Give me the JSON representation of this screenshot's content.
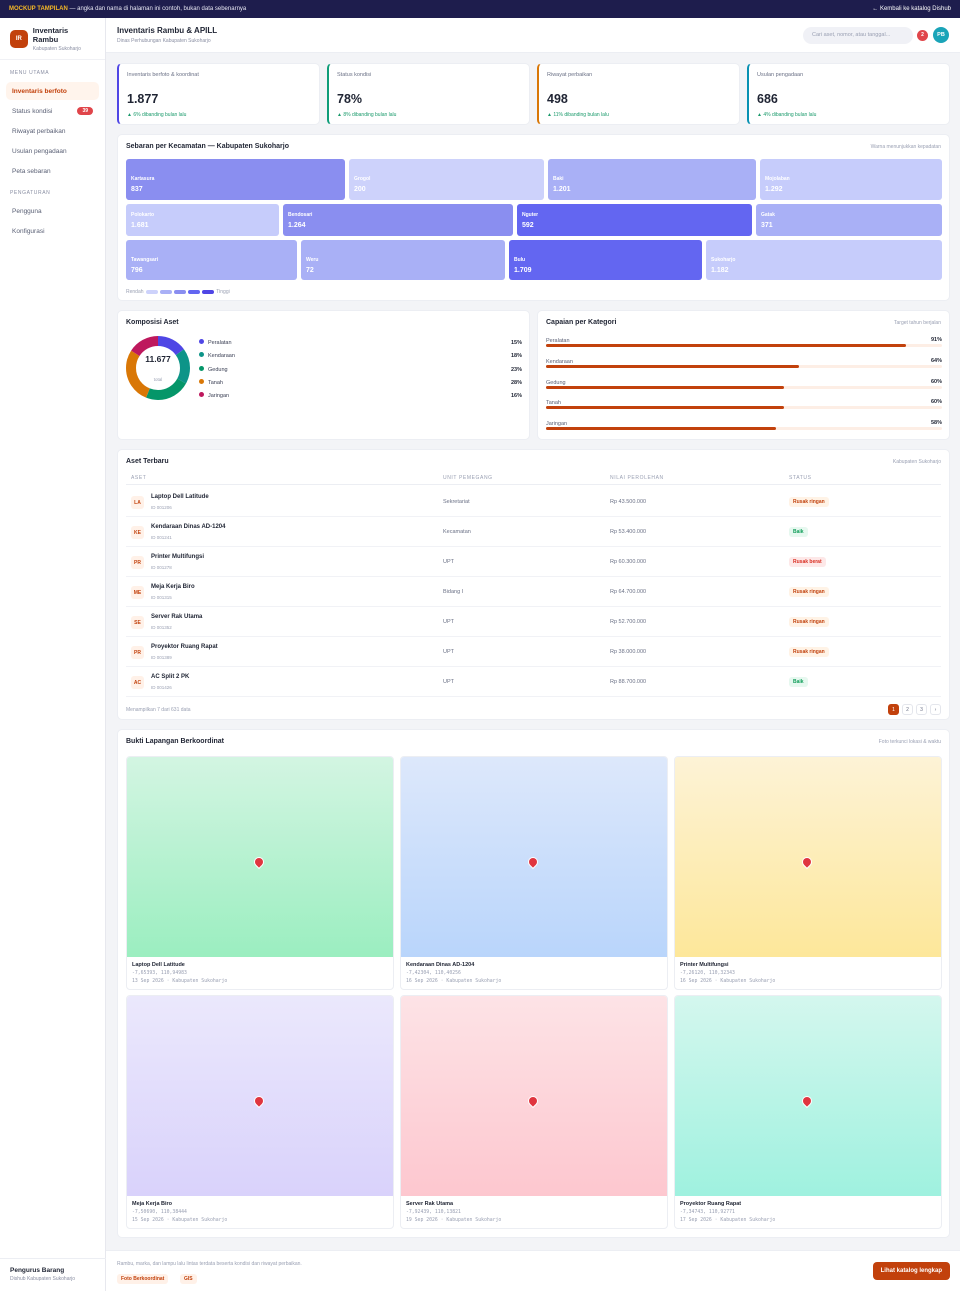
{
  "banner": {
    "tag": "MOCKUP TAMPILAN",
    "text": " — angka dan nama di halaman ini contoh, bukan data sebenarnya",
    "back": "← Kembali ke katalog Dishub"
  },
  "brand": {
    "initials": "IR",
    "title": "Inventaris Rambu",
    "subtitle": "Kabupaten Sukoharjo"
  },
  "sidebar": {
    "section1": "MENU UTAMA",
    "section2": "PENGATURAN",
    "items": [
      {
        "label": "Inventaris berfoto"
      },
      {
        "label": "Status kondisi",
        "count": "39"
      },
      {
        "label": "Riwayat perbaikan"
      },
      {
        "label": "Usulan pengadaan"
      },
      {
        "label": "Peta sebaran"
      }
    ],
    "settings": [
      {
        "label": "Pengguna"
      },
      {
        "label": "Konfigurasi"
      }
    ],
    "user": {
      "name": "Pengurus Barang",
      "role": "Dishub Kabupaten Sukoharjo"
    }
  },
  "header": {
    "title": "Inventaris Rambu & APILL",
    "subtitle": "Dinas Perhubungan Kabupaten Sukoharjo",
    "search_placeholder": "Cari aset, nomor, atau tanggal...",
    "notif": "2",
    "avatar": "PB"
  },
  "kpis": [
    {
      "label": "Inventaris berfoto & koordinat",
      "value": "1.877",
      "delta": "▲ 6% dibanding bulan lalu",
      "color": "#4f46e5"
    },
    {
      "label": "Status kondisi",
      "value": "78%",
      "delta": "▲ 8% dibanding bulan lalu",
      "color": "#0f9d78"
    },
    {
      "label": "Riwayat perbaikan",
      "value": "498",
      "delta": "▲ 11% dibanding bulan lalu",
      "color": "#d97706"
    },
    {
      "label": "Usulan pengadaan",
      "value": "686",
      "delta": "▲ 4% dibanding bulan lalu",
      "color": "#0891b2"
    }
  ],
  "treemap": {
    "title": "Sebaran per Kecamatan — Kabupaten Sukoharjo",
    "note": "Warna menunjukkan kepadatan",
    "low": "Rendah",
    "high": "Tinggi",
    "tiles": [
      {
        "name": "Kartasura",
        "value": "837"
      },
      {
        "name": "Grogol",
        "value": "200"
      },
      {
        "name": "Baki",
        "value": "1.201"
      },
      {
        "name": "Mojolaban",
        "value": "1.292"
      },
      {
        "name": "Polokarto",
        "value": "1.681"
      },
      {
        "name": "Bendosari",
        "value": "1.264"
      },
      {
        "name": "Nguter",
        "value": "592"
      },
      {
        "name": "Gatak",
        "value": "371"
      },
      {
        "name": "Tawangsari",
        "value": "796"
      },
      {
        "name": "Weru",
        "value": "72"
      },
      {
        "name": "Bulu",
        "value": "1.709"
      },
      {
        "name": "Sukoharjo",
        "value": "1.182"
      }
    ]
  },
  "composition": {
    "title": "Komposisi Aset",
    "total": "11.677",
    "total_label": "total",
    "items": [
      {
        "name": "Peralatan",
        "pct": "15%",
        "share": 15,
        "color": "#4f46e5"
      },
      {
        "name": "Kendaraan",
        "pct": "18%",
        "share": 18,
        "color": "#0d9488"
      },
      {
        "name": "Gedung",
        "pct": "23%",
        "share": 23,
        "color": "#059669"
      },
      {
        "name": "Tanah",
        "pct": "28%",
        "share": 28,
        "color": "#d97706"
      },
      {
        "name": "Jaringan",
        "pct": "16%",
        "share": 16,
        "color": "#be185d"
      }
    ]
  },
  "achievement": {
    "title": "Capaian per Kategori",
    "note": "Target tahun berjalan",
    "items": [
      {
        "name": "Peralatan",
        "pct": "91%",
        "fill": 0.91
      },
      {
        "name": "Kendaraan",
        "pct": "64%",
        "fill": 0.64
      },
      {
        "name": "Gedung",
        "pct": "60%",
        "fill": 0.6
      },
      {
        "name": "Tanah",
        "pct": "60%",
        "fill": 0.6
      },
      {
        "name": "Jaringan",
        "pct": "58%",
        "fill": 0.58
      }
    ]
  },
  "assets": {
    "title": "Aset Terbaru",
    "note": "Kabupaten Sukoharjo",
    "cols": [
      "ASET",
      "UNIT PEMEGANG",
      "NILAI PEROLEHAN",
      "STATUS"
    ],
    "rows": [
      {
        "ini": "LA",
        "name": "Laptop Dell Latitude",
        "id": "ID 001206",
        "unit": "Sekretariat",
        "value": "Rp 43.500.000",
        "status": "Rusak ringan"
      },
      {
        "ini": "KE",
        "name": "Kendaraan Dinas AD-1204",
        "id": "ID 001241",
        "unit": "Kecamatan",
        "value": "Rp 53.400.000",
        "status": "Baik"
      },
      {
        "ini": "PR",
        "name": "Printer Multifungsi",
        "id": "ID 001278",
        "unit": "UPT",
        "value": "Rp 60.300.000",
        "status": "Rusak berat"
      },
      {
        "ini": "ME",
        "name": "Meja Kerja Biro",
        "id": "ID 001315",
        "unit": "Bidang I",
        "value": "Rp 64.700.000",
        "status": "Rusak ringan"
      },
      {
        "ini": "SE",
        "name": "Server Rak Utama",
        "id": "ID 001352",
        "unit": "UPT",
        "value": "Rp 52.700.000",
        "status": "Rusak ringan"
      },
      {
        "ini": "PR",
        "name": "Proyektor Ruang Rapat",
        "id": "ID 001389",
        "unit": "UPT",
        "value": "Rp 38.000.000",
        "status": "Rusak ringan"
      },
      {
        "ini": "AC",
        "name": "AC Split 2 PK",
        "id": "ID 001426",
        "unit": "UPT",
        "value": "Rp 88.700.000",
        "status": "Baik"
      }
    ],
    "summary": "Menampilkan 7 dari 631 data",
    "pages": [
      "1",
      "2",
      "3",
      "›"
    ]
  },
  "photos": {
    "title": "Bukti Lapangan Berkoordinat",
    "note": "Foto terkunci lokasi & waktu",
    "items": [
      {
        "name": "Laptop Dell Latitude",
        "coord": "-7,65393, 110,94983",
        "date": "13 Sep 2026 · Kabupaten Sukoharjo"
      },
      {
        "name": "Kendaraan Dinas AD-1204",
        "coord": "-7,42304, 110,40256",
        "date": "16 Sep 2026 · Kabupaten Sukoharjo"
      },
      {
        "name": "Printer Multifungsi",
        "coord": "-7,26120, 110,32343",
        "date": "16 Sep 2026 · Kabupaten Sukoharjo"
      },
      {
        "name": "Meja Kerja Biro",
        "coord": "-7,50690, 110,38444",
        "date": "15 Sep 2026 · Kabupaten Sukoharjo"
      },
      {
        "name": "Server Rak Utama",
        "coord": "-7,92439, 110,13821",
        "date": "19 Sep 2026 · Kabupaten Sukoharjo"
      },
      {
        "name": "Proyektor Ruang Rapat",
        "coord": "-7,34743, 110,92771",
        "date": "17 Sep 2026 · Kabupaten Sukoharjo"
      }
    ]
  },
  "footer": {
    "desc": "Rambu, marka, dan lampu lalu lintas terdata beserta kondisi dan riwayat perbaikan.",
    "tag1": "Foto Berkoordinat",
    "tag2": "GIS",
    "cta": "Lihat katalog lengkap"
  }
}
